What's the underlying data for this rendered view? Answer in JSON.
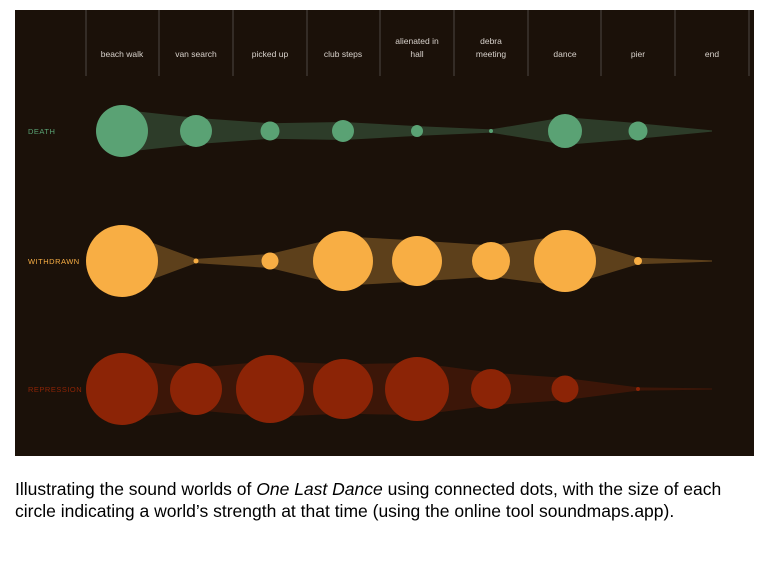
{
  "caption": {
    "prefix": "Illustrating the sound worlds of ",
    "title": "One Last Dance",
    "suffix": " using connected dots, with the size of each circle indicating a world’s strength at that time (using the online tool soundmaps.app)."
  },
  "colors": {
    "background": "#1b1109",
    "gridline": "#4d4642",
    "header_text": "#d8d2cc"
  },
  "chart_data": {
    "type": "scatter",
    "encoding": "circle area = strength; rows connected by translucent bands",
    "categories": [
      "beach walk",
      "van search",
      "picked up",
      "club steps",
      "alienated in hall",
      "debra meeting",
      "dance",
      "pier",
      "end"
    ],
    "series": [
      {
        "name": "DEATH",
        "color": "#5aa274",
        "values": [
          26,
          16,
          9.5,
          11,
          6,
          2,
          17,
          9.5,
          0
        ]
      },
      {
        "name": "WITHDRAWN",
        "color": "#f8ae44",
        "values": [
          36,
          2.5,
          8.5,
          30,
          25,
          19,
          31,
          4,
          0
        ]
      },
      {
        "name": "REPRESSION",
        "color": "#8c2406",
        "values": [
          36,
          26,
          34,
          30,
          32,
          20,
          13.5,
          2,
          0
        ]
      }
    ]
  }
}
